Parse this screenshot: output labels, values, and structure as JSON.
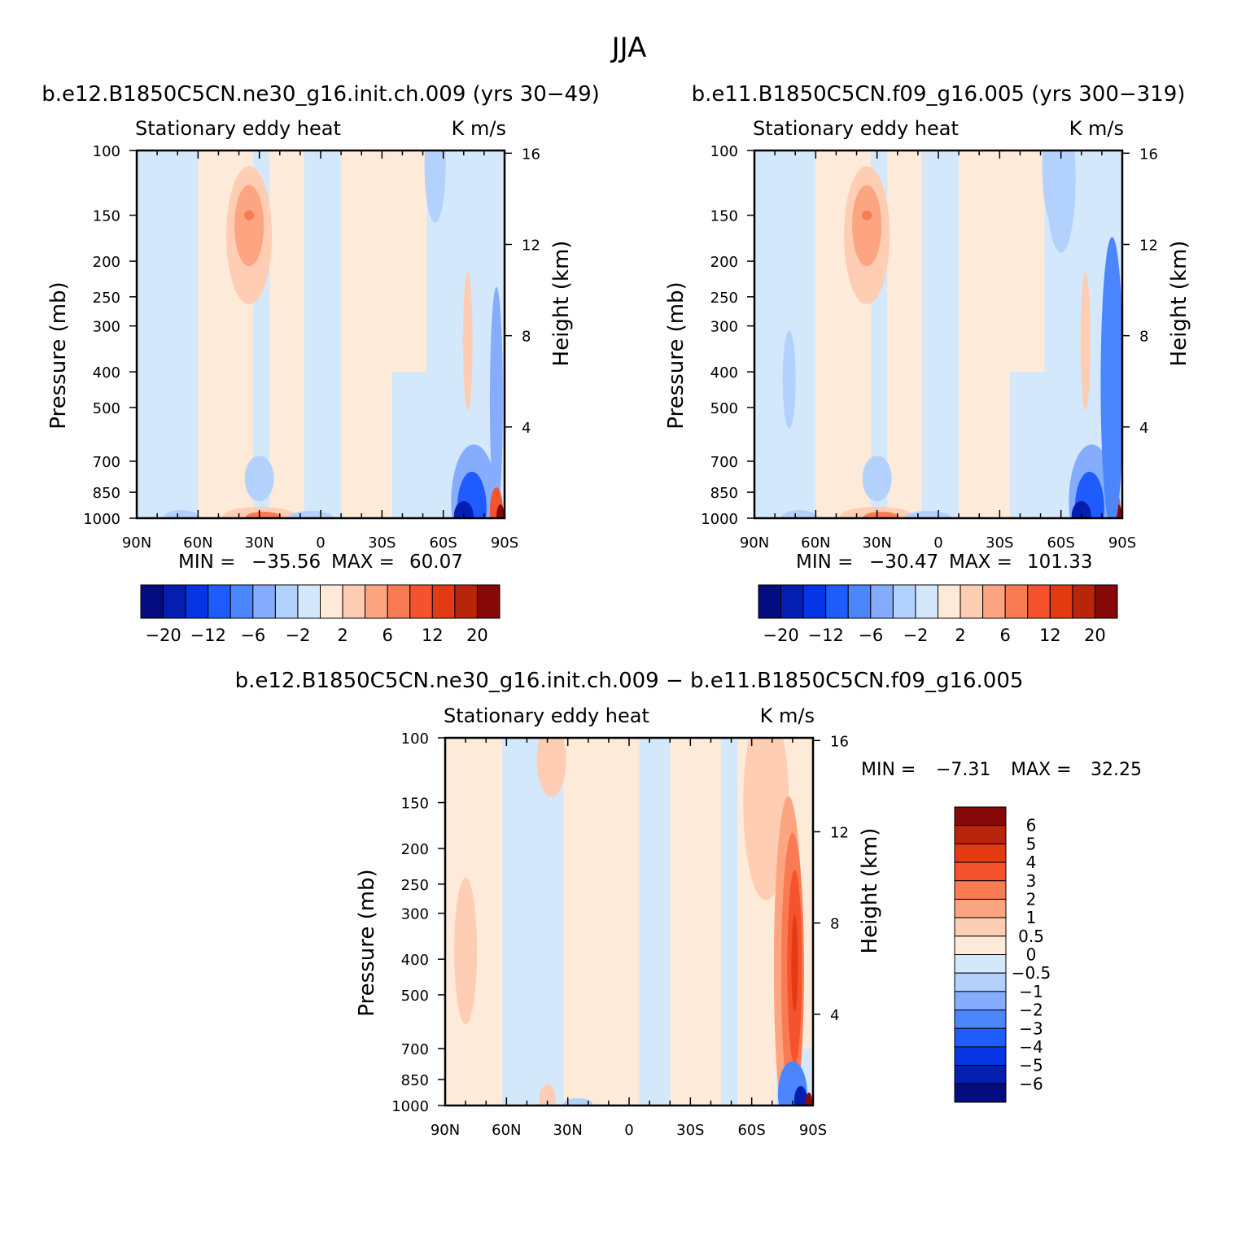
{
  "figure_title": "JJA",
  "colors": {
    "pos": [
      "#FEEAD8",
      "#FECDB3",
      "#FCA580",
      "#F87B54",
      "#F5532D",
      "#E43A12",
      "#B8250A",
      "#870808"
    ],
    "neg": [
      "#D4E8FB",
      "#B3D1FD",
      "#86ADFD",
      "#4B86FD",
      "#1E5CFE",
      "#0635E6",
      "#041FB0",
      "#050C80"
    ]
  },
  "chart_data": [
    {
      "type": "heatmap",
      "title": "b.e12.B1850C5CN.ne30_g16.init.ch.009 (yrs 30−49)",
      "left_label": "Stationary eddy heat",
      "right_label": "K m/s",
      "ylabel": "Pressure (mb)",
      "ylabel2": "Height (km)",
      "xticks": [
        "90N",
        "60N",
        "30N",
        "0",
        "30S",
        "60S",
        "90S"
      ],
      "xlim": [
        90,
        -90
      ],
      "yticks": [
        "100",
        "150",
        "200",
        "250",
        "300",
        "400",
        "500",
        "700",
        "850",
        "1000"
      ],
      "ylim": [
        1000,
        100
      ],
      "yticks2": [
        "16",
        "12",
        "8",
        "4"
      ],
      "stats": {
        "min_label": "MIN =",
        "min": "−35.56",
        "max_label": "MAX =",
        "max": "60.07"
      },
      "colorbar": {
        "orientation": "horizontal",
        "labels": [
          "−20",
          "−12",
          "−6",
          "−2",
          "2",
          "6",
          "12",
          "20"
        ]
      },
      "features": [
        {
          "lat": 35,
          "p": 150,
          "value": 6
        },
        {
          "lat": -65,
          "p": 950,
          "value": -20
        },
        {
          "lat": -85,
          "p": 950,
          "value": 20
        },
        {
          "lat": 30,
          "p": 990,
          "value": 6
        }
      ]
    },
    {
      "type": "heatmap",
      "title": "b.e11.B1850C5CN.f09_g16.005 (yrs 300−319)",
      "left_label": "Stationary eddy heat",
      "right_label": "K m/s",
      "ylabel": "Pressure (mb)",
      "ylabel2": "Height (km)",
      "xticks": [
        "90N",
        "60N",
        "30N",
        "0",
        "30S",
        "60S",
        "90S"
      ],
      "xlim": [
        90,
        -90
      ],
      "yticks": [
        "100",
        "150",
        "200",
        "250",
        "300",
        "400",
        "500",
        "700",
        "850",
        "1000"
      ],
      "ylim": [
        1000,
        100
      ],
      "yticks2": [
        "16",
        "12",
        "8",
        "4"
      ],
      "stats": {
        "min_label": "MIN =",
        "min": "−30.47",
        "max_label": "MAX =",
        "max": "101.33"
      },
      "colorbar": {
        "orientation": "horizontal",
        "labels": [
          "−20",
          "−12",
          "−6",
          "−2",
          "2",
          "6",
          "12",
          "20"
        ]
      },
      "features": [
        {
          "lat": 35,
          "p": 150,
          "value": 6
        },
        {
          "lat": -65,
          "p": 950,
          "value": -20
        },
        {
          "lat": -85,
          "p": 950,
          "value": 20
        },
        {
          "lat": 30,
          "p": 990,
          "value": 6
        }
      ]
    },
    {
      "type": "heatmap",
      "title": "b.e12.B1850C5CN.ne30_g16.init.ch.009 − b.e11.B1850C5CN.f09_g16.005",
      "left_label": "Stationary eddy heat",
      "right_label": "K m/s",
      "ylabel": "Pressure (mb)",
      "ylabel2": "Height (km)",
      "xticks": [
        "90N",
        "60N",
        "30N",
        "0",
        "30S",
        "60S",
        "90S"
      ],
      "xlim": [
        90,
        -90
      ],
      "yticks": [
        "100",
        "150",
        "200",
        "250",
        "300",
        "400",
        "500",
        "700",
        "850",
        "1000"
      ],
      "ylim": [
        1000,
        100
      ],
      "yticks2": [
        "16",
        "12",
        "8",
        "4"
      ],
      "stats": {
        "min_label": "MIN =",
        "min": "−7.31",
        "max_label": "MAX =",
        "max": "32.25"
      },
      "colorbar": {
        "orientation": "vertical",
        "labels": [
          "6",
          "5",
          "4",
          "3",
          "2",
          "1",
          "0.5",
          "0",
          "−0.5",
          "−1",
          "−2",
          "−3",
          "−4",
          "−5",
          "−6"
        ]
      },
      "features": [
        {
          "lat": -78,
          "p": 400,
          "value": 4
        },
        {
          "lat": -80,
          "p": 950,
          "value": -6
        },
        {
          "lat": 78,
          "p": 400,
          "value": 1
        }
      ]
    }
  ]
}
